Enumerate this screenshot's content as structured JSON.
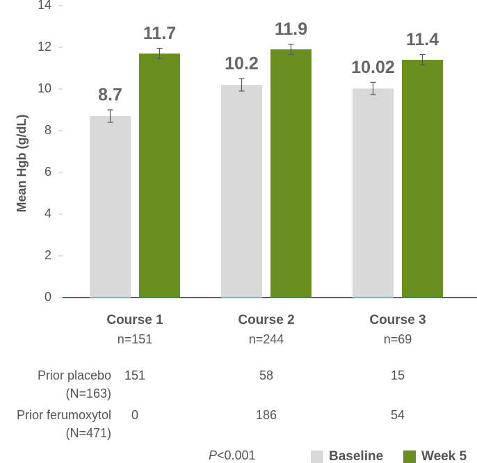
{
  "chart_data": {
    "type": "bar",
    "y_label": "Mean Hgb (g/dL)",
    "categories": [
      "Course 1",
      "Course 2",
      "Course 3"
    ],
    "category_notes": [
      "n=151",
      "n=244",
      "n=69"
    ],
    "series": [
      {
        "name": "Baseline",
        "color": "#d9d9d9",
        "values": [
          8.7,
          10.2,
          10.02
        ],
        "errors": [
          0.3,
          0.3,
          0.3
        ]
      },
      {
        "name": "Week 5",
        "color": "#6a8f1f",
        "values": [
          11.7,
          11.9,
          11.4
        ],
        "errors": [
          0.25,
          0.25,
          0.25
        ]
      }
    ],
    "ylim": [
      0,
      14
    ],
    "yticks": [
      0,
      2,
      4,
      6,
      8,
      10,
      12,
      14
    ],
    "table": {
      "rows": [
        {
          "label": "Prior placebo",
          "sublabel": "(N=163)",
          "values": [
            151,
            58,
            15
          ]
        },
        {
          "label": "Prior ferumoxytol",
          "sublabel": "(N=471)",
          "values": [
            0,
            186,
            54
          ]
        }
      ]
    },
    "footnote_italic": "P",
    "footnote": "<0.001",
    "legend": "bottom-right"
  }
}
